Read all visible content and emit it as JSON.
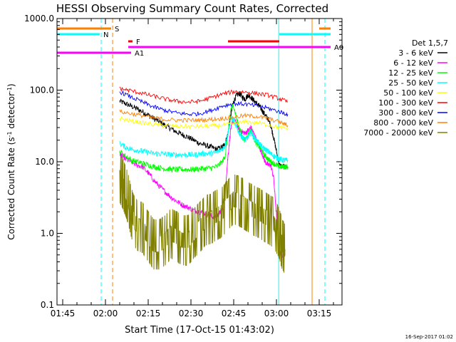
{
  "chart_data": {
    "type": "line",
    "title": "HESSI Observing Summary Count Rates, Corrected",
    "xlabel": "Start Time (17-Oct-15 01:43:02)",
    "ylabel_main": "Corrected Count Rate (s",
    "ylabel_sup1": "-1",
    "ylabel_mid": " detector",
    "ylabel_sup2": "-1",
    "ylabel_end": ")",
    "x_unit": "minutes after 01:43:02",
    "xlim": [
      0,
      100
    ],
    "ylim": [
      0.1,
      1000
    ],
    "y_scale": "log",
    "xticks": [
      {
        "t": 2,
        "label": "01:45"
      },
      {
        "t": 17,
        "label": "02:00"
      },
      {
        "t": 32,
        "label": "02:15"
      },
      {
        "t": 47,
        "label": "02:30"
      },
      {
        "t": 62,
        "label": "02:45"
      },
      {
        "t": 77,
        "label": "03:00"
      },
      {
        "t": 92,
        "label": "03:15"
      }
    ],
    "yticks": [
      {
        "v": 0.1,
        "label": "0.1"
      },
      {
        "v": 1,
        "label": "1.0"
      },
      {
        "v": 10,
        "label": "10.0"
      },
      {
        "v": 100,
        "label": "100.0"
      },
      {
        "v": 1000,
        "label": "1000.0"
      }
    ],
    "legend": {
      "title": "Det 1,5,7",
      "placement": "right"
    },
    "series": [
      {
        "name": "3 - 6 keV",
        "color": "#000000",
        "x": [
          22,
          24,
          26,
          28,
          30,
          32,
          34,
          36,
          38,
          40,
          42,
          44,
          46,
          48,
          50,
          52,
          54,
          56,
          58,
          59,
          60,
          61,
          62,
          63,
          64,
          65,
          66,
          67,
          68,
          69,
          70,
          71,
          72,
          73,
          74,
          75,
          76,
          77,
          78,
          79,
          80,
          81
        ],
        "y": [
          70,
          65,
          60,
          55,
          50,
          45,
          40,
          36,
          32,
          29,
          26,
          24,
          22,
          20,
          18,
          17,
          16,
          15,
          16,
          18,
          25,
          45,
          70,
          85,
          90,
          80,
          75,
          85,
          80,
          72,
          65,
          60,
          52,
          45,
          40,
          32,
          22,
          14,
          9,
          8.5,
          8.5,
          8.5
        ]
      },
      {
        "name": "6 - 12 keV",
        "color": "#ff00ff",
        "x": [
          22,
          23,
          24,
          26,
          28,
          30,
          32,
          34,
          36,
          38,
          40,
          42,
          44,
          46,
          48,
          50,
          52,
          54,
          56,
          57,
          58,
          59,
          60,
          61,
          62,
          63,
          64,
          65,
          66,
          67,
          68,
          69,
          70,
          71,
          72,
          73,
          74,
          75,
          76,
          77,
          78,
          79,
          80
        ],
        "y": [
          13,
          12,
          11,
          10,
          9,
          8.5,
          7,
          5.5,
          4.5,
          3.8,
          3.2,
          2.8,
          2.5,
          2.3,
          2.1,
          2.0,
          1.9,
          1.75,
          1.7,
          1.9,
          2.2,
          4,
          12,
          30,
          38,
          34,
          28,
          26,
          25,
          27,
          30,
          25,
          20,
          16,
          13,
          10,
          9,
          9,
          6,
          1.8,
          0.55,
          0.5,
          0.5
        ]
      },
      {
        "name": "12 - 25 keV",
        "color": "#00ff00",
        "x": [
          22,
          24,
          26,
          28,
          30,
          32,
          34,
          36,
          38,
          40,
          42,
          44,
          46,
          48,
          50,
          52,
          54,
          56,
          58,
          59,
          60,
          61,
          62,
          63,
          64,
          65,
          66,
          67,
          68,
          69,
          70,
          71,
          72,
          73,
          74,
          75,
          76,
          77,
          78,
          79,
          80,
          81
        ],
        "y": [
          14,
          12,
          10.5,
          10,
          9.5,
          9,
          8.5,
          8.2,
          8,
          7.8,
          7.8,
          7.8,
          7.8,
          7.8,
          8,
          8,
          8.2,
          8.5,
          10,
          12,
          25,
          55,
          60,
          40,
          30,
          22,
          20,
          24,
          28,
          22,
          18,
          16,
          14,
          12,
          11,
          10,
          9.5,
          9,
          8.5,
          8.5,
          8.5,
          8.5
        ]
      },
      {
        "name": "25 - 50 keV",
        "color": "#00ffff",
        "x": [
          22,
          24,
          26,
          28,
          30,
          32,
          34,
          36,
          38,
          40,
          42,
          44,
          46,
          48,
          50,
          52,
          54,
          56,
          58,
          59,
          60,
          61,
          62,
          63,
          64,
          65,
          66,
          67,
          68,
          69,
          70,
          71,
          72,
          73,
          74,
          75,
          76,
          77,
          78,
          79,
          80,
          81
        ],
        "y": [
          18,
          16,
          15,
          14.5,
          14,
          13.5,
          13,
          13,
          12.8,
          12.5,
          12.5,
          12.5,
          12.5,
          12.5,
          12.8,
          13,
          13,
          13.5,
          15,
          17,
          25,
          40,
          38,
          30,
          25,
          22,
          20,
          22,
          26,
          22,
          20,
          18,
          16,
          15,
          14,
          13,
          12,
          11.5,
          11,
          10.5,
          10.5,
          10.5
        ]
      },
      {
        "name": "50 - 100 keV",
        "color": "#ffff00",
        "x": [
          22,
          26,
          30,
          34,
          38,
          42,
          46,
          50,
          54,
          58,
          62,
          66,
          70,
          74,
          78,
          81
        ],
        "y": [
          40,
          37,
          35,
          33,
          32,
          31,
          31,
          31,
          31.5,
          32,
          34,
          36,
          35,
          33,
          30,
          29
        ]
      },
      {
        "name": "100 - 300 keV",
        "color": "#ff0000",
        "x": [
          22,
          26,
          30,
          34,
          38,
          42,
          46,
          50,
          54,
          58,
          62,
          66,
          70,
          74,
          78,
          81
        ],
        "y": [
          105,
          98,
          90,
          82,
          75,
          70,
          68,
          70,
          78,
          88,
          95,
          94,
          90,
          85,
          76,
          68
        ]
      },
      {
        "name": "300 - 800 keV",
        "color": "#0000ff",
        "x": [
          22,
          26,
          30,
          34,
          38,
          42,
          46,
          50,
          54,
          58,
          62,
          66,
          70,
          74,
          78,
          81
        ],
        "y": [
          95,
          80,
          68,
          58,
          52,
          48,
          46,
          47,
          52,
          60,
          65,
          64,
          60,
          56,
          50,
          46
        ]
      },
      {
        "name": "800 - 7000 keV",
        "color": "#ff8000",
        "x": [
          22,
          26,
          30,
          34,
          38,
          42,
          46,
          50,
          54,
          58,
          62,
          66,
          70,
          74,
          78,
          81
        ],
        "y": [
          50,
          47,
          44,
          41,
          39,
          38,
          38,
          38,
          39,
          40,
          42,
          44,
          43,
          40,
          36,
          32
        ]
      },
      {
        "name": "7000 - 20000 keV",
        "color": "#808000",
        "x": [
          22,
          23,
          24,
          25,
          26,
          27,
          28,
          30,
          32,
          34,
          36,
          38,
          40,
          42,
          44,
          46,
          48,
          50,
          52,
          54,
          56,
          58,
          60,
          62,
          64,
          66,
          68,
          70,
          72,
          74,
          76,
          78,
          79,
          80
        ],
        "y": [
          6,
          5,
          4,
          3,
          2,
          1.5,
          1.3,
          1.2,
          0.9,
          0.7,
          0.7,
          0.8,
          1.0,
          0.9,
          0.8,
          0.8,
          1.0,
          1.2,
          1.5,
          1.6,
          1.8,
          2.0,
          2.5,
          3.0,
          2.8,
          2.5,
          2.2,
          2.0,
          1.8,
          1.6,
          1.4,
          1.0,
          0.7,
          0.6
        ]
      }
    ],
    "state_bars": [
      {
        "label": "S",
        "color": "#ff8000",
        "t0": 0,
        "t1": 19,
        "row": 0
      },
      {
        "label": "",
        "color": "#ff8000",
        "t0": 92,
        "t1": 96,
        "row": 0
      },
      {
        "label": "N",
        "color": "#00ffff",
        "t0": 0,
        "t1": 15,
        "row": 1
      },
      {
        "label": "",
        "color": "#00ffff",
        "t0": 78,
        "t1": 96,
        "row": 1
      },
      {
        "label": "F",
        "color": "#ff0000",
        "t0": 25,
        "t1": 26.5,
        "row": 2
      },
      {
        "label": "",
        "color": "#ff0000",
        "t0": 60,
        "t1": 78,
        "row": 2
      },
      {
        "label": "A0",
        "color": "#ff00ff",
        "t0": 25,
        "t1": 96,
        "row": 3
      },
      {
        "label": "A1",
        "color": "#ff00ff",
        "t0": 0,
        "t1": 26,
        "row": 4
      }
    ],
    "vlines": [
      {
        "t": 0,
        "color": "#00ffff",
        "style": "solid"
      },
      {
        "t": 15.5,
        "color": "#00ffff",
        "style": "dashed"
      },
      {
        "t": 19.5,
        "color": "#ff8000",
        "style": "dashed"
      },
      {
        "t": 77.8,
        "color": "#00ffff",
        "style": "solid"
      },
      {
        "t": 89.5,
        "color": "#ff8000",
        "style": "solid"
      },
      {
        "t": 94,
        "color": "#00ffff",
        "style": "dashed"
      }
    ],
    "grid": false
  },
  "footer": {
    "date_stamp": "16-Sep-2017 01:02"
  }
}
